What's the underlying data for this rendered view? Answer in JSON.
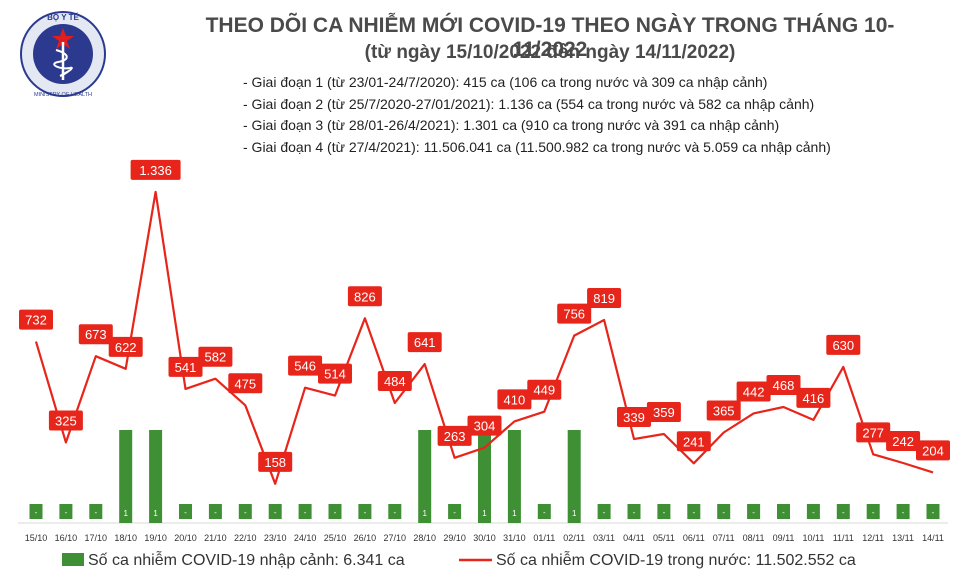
{
  "logo": {
    "text_top": "BỘ Y TẾ",
    "text_bottom": "MINISTRY OF HEALTH"
  },
  "header": {
    "title": "THEO DÕI CA NHIỄM MỚI COVID-19 THEO NGÀY TRONG THÁNG 10-11/2022",
    "subtitle": "(từ ngày 15/10/2022 đến ngày 14/11/2022)"
  },
  "notes": [
    "- Giai đoạn 1 (từ 23/01-24/7/2020): 415 ca (106 ca trong nước và 309 ca nhập cảnh)",
    "- Giai đoạn 2 (từ 25/7/2020-27/01/2021): 1.136 ca (554 ca trong nước và 582 ca nhập cảnh)",
    "- Giai đoạn 3 (từ 28/01-26/4/2021): 1.301 ca (910 ca trong nước và 391 ca nhập cảnh)",
    "- Giai đoạn 4 (từ 27/4/2021): 11.506.041 ca (11.500.982 ca trong nước và 5.059 ca nhập cảnh)"
  ],
  "legend": {
    "bar_label": "Số ca nhiễm COVID-19 nhập cảnh: 6.341 ca",
    "line_label": "Số ca nhiễm COVID-19 trong nước: 11.502.552 ca"
  },
  "colors": {
    "bar": "#3f8f35",
    "line": "#e8251a",
    "label_bg": "#e8251a",
    "title": "#4a4a4a"
  },
  "chart_data": {
    "type": "bar+line",
    "categories": [
      "15/10",
      "16/10",
      "17/10",
      "18/10",
      "19/10",
      "20/10",
      "21/10",
      "22/10",
      "23/10",
      "24/10",
      "25/10",
      "26/10",
      "27/10",
      "28/10",
      "29/10",
      "30/10",
      "31/10",
      "01/11",
      "02/11",
      "03/11",
      "04/11",
      "05/11",
      "06/11",
      "07/11",
      "08/11",
      "09/11",
      "10/11",
      "11/11",
      "12/11",
      "13/11",
      "14/11"
    ],
    "series": [
      {
        "name": "Số ca nhiễm COVID-19 trong nước: 11.502.552 ca",
        "type": "line",
        "axis": "left",
        "values": [
          732,
          325,
          673,
          622,
          1336,
          541,
          582,
          475,
          158,
          546,
          514,
          826,
          484,
          641,
          263,
          304,
          410,
          449,
          756,
          819,
          339,
          359,
          241,
          365,
          442,
          468,
          416,
          630,
          277,
          242,
          204
        ],
        "labels": [
          "732",
          "325",
          "673",
          "622",
          "1.336",
          "541",
          "582",
          "475",
          "158",
          "546",
          "514",
          "826",
          "484",
          "641",
          "263",
          "304",
          "410",
          "449",
          "756",
          "819",
          "339",
          "359",
          "241",
          "365",
          "442",
          "468",
          "416",
          "630",
          "277",
          "242",
          "204"
        ]
      },
      {
        "name": "Số ca nhiễm COVID-19 nhập cảnh: 6.341 ca",
        "type": "bar",
        "axis": "right",
        "values": [
          0,
          0,
          0,
          1,
          1,
          0,
          0,
          0,
          0,
          0,
          0,
          0,
          0,
          1,
          0,
          1,
          1,
          0,
          1,
          0,
          0,
          0,
          0,
          0,
          0,
          0,
          0,
          0,
          0,
          0,
          0
        ],
        "labels": [
          "-",
          "-",
          "-",
          "1",
          "1",
          "-",
          "-",
          "-",
          "-",
          "-",
          "-",
          "-",
          "-",
          "1",
          "-",
          "1",
          "1",
          "-",
          "1",
          "-",
          "-",
          "-",
          "-",
          "-",
          "-",
          "-",
          "-",
          "-",
          "-",
          "-",
          "-"
        ]
      }
    ],
    "left_ylim": [
      0,
      1400
    ],
    "right_ylim": [
      0,
      4
    ],
    "grid": false
  }
}
